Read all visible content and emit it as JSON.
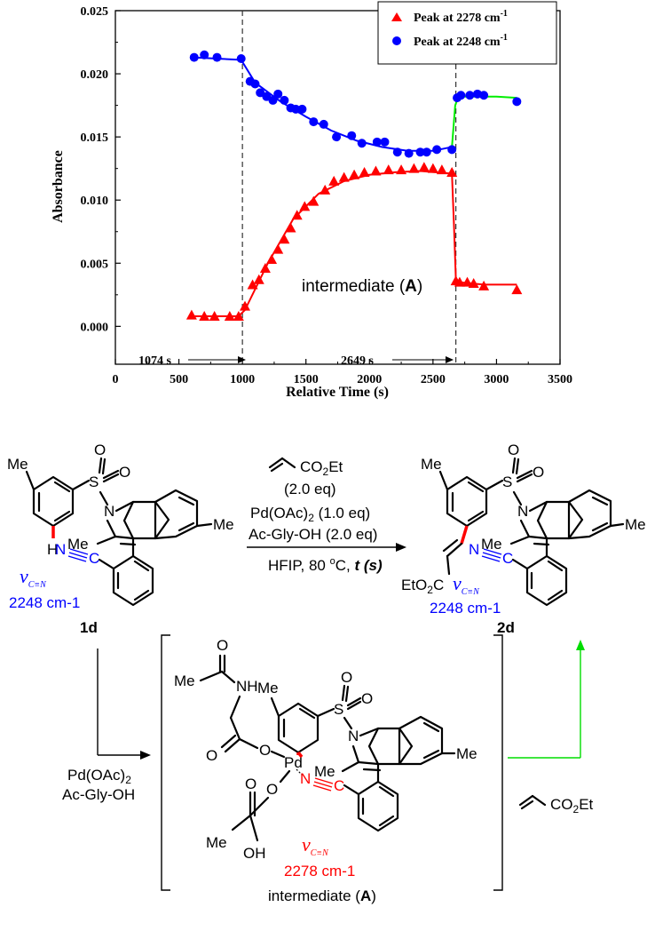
{
  "chart_data": {
    "type": "scatter",
    "title": "",
    "xlabel": "Relative Time (s)",
    "ylabel": "Absorbance",
    "xlim": [
      0,
      3500
    ],
    "ylim": [
      -0.003,
      0.025
    ],
    "x_ticks": [
      0,
      500,
      1000,
      1500,
      2000,
      2500,
      3000,
      3500
    ],
    "y_ticks": [
      0.0,
      0.005,
      0.01,
      0.015,
      0.02,
      0.025
    ],
    "y_tick_labels": [
      "0.000",
      "0.005",
      "0.010",
      "0.015",
      "0.020",
      "0.025"
    ],
    "legend_position": "top-right",
    "series": [
      {
        "name": "Peak at 2278 cm-1",
        "name_main": "Peak at 2278 cm",
        "name_sup": "-1",
        "marker": "triangle",
        "color": "#ff0000",
        "x": [
          600,
          700,
          780,
          900,
          970,
          1020,
          1080,
          1130,
          1180,
          1230,
          1280,
          1330,
          1380,
          1430,
          1490,
          1560,
          1650,
          1720,
          1800,
          1880,
          1960,
          2050,
          2150,
          2250,
          2350,
          2430,
          2500,
          2570,
          2649,
          2680,
          2710,
          2770,
          2820,
          2900,
          3160
        ],
        "y": [
          0.0009,
          0.0008,
          0.0008,
          0.0008,
          0.0008,
          0.0016,
          0.0033,
          0.0037,
          0.0046,
          0.0053,
          0.0061,
          0.0069,
          0.0078,
          0.0088,
          0.0095,
          0.0099,
          0.0108,
          0.0115,
          0.0118,
          0.012,
          0.0122,
          0.0123,
          0.0124,
          0.0124,
          0.0125,
          0.0126,
          0.0125,
          0.0124,
          0.0122,
          0.0036,
          0.0035,
          0.0035,
          0.0034,
          0.0032,
          0.0029
        ]
      },
      {
        "name": "Peak at 2248 cm-1",
        "name_main": "Peak at 2248 cm",
        "name_sup": "-1",
        "marker": "circle",
        "color": "#0000ff",
        "x": [
          620,
          700,
          800,
          990,
          1060,
          1100,
          1140,
          1190,
          1240,
          1280,
          1330,
          1380,
          1420,
          1470,
          1560,
          1640,
          1740,
          1860,
          1940,
          2060,
          2120,
          2220,
          2310,
          2400,
          2450,
          2530,
          2649,
          2690,
          2720,
          2790,
          2850,
          2900,
          3160
        ],
        "y": [
          0.0213,
          0.0215,
          0.0213,
          0.0212,
          0.0194,
          0.0192,
          0.0185,
          0.0182,
          0.0179,
          0.0184,
          0.0179,
          0.0173,
          0.0172,
          0.0172,
          0.0162,
          0.016,
          0.015,
          0.0151,
          0.0145,
          0.0146,
          0.0146,
          0.0138,
          0.0137,
          0.0138,
          0.0138,
          0.014,
          0.014,
          0.0181,
          0.0183,
          0.0183,
          0.0184,
          0.0183,
          0.0178
        ]
      }
    ],
    "fit_lines": [
      {
        "color": "#ff0000",
        "x": [
          600,
          970,
          1020,
          1200,
          1400,
          1600,
          1800,
          2000,
          2200,
          2400,
          2649
        ],
        "y": [
          0.0008,
          0.0008,
          0.0013,
          0.005,
          0.0085,
          0.0105,
          0.0115,
          0.012,
          0.0122,
          0.0123,
          0.0121
        ]
      },
      {
        "color": "#ff0000",
        "x": [
          2649,
          2665,
          2680,
          2700,
          2800,
          2900,
          3160
        ],
        "y": [
          0.0121,
          0.008,
          0.0038,
          0.0035,
          0.0034,
          0.0033,
          0.0033
        ]
      },
      {
        "color": "#0000ff",
        "x": [
          620,
          800,
          990,
          1100,
          1300,
          1500,
          1700,
          1900,
          2100,
          2300,
          2500,
          2649
        ],
        "y": [
          0.0213,
          0.0212,
          0.0211,
          0.0193,
          0.0178,
          0.0166,
          0.0155,
          0.0147,
          0.0142,
          0.0139,
          0.0139,
          0.0142
        ]
      },
      {
        "color": "#00ee00",
        "x": [
          2649,
          2675,
          2700,
          2800,
          2900,
          3000,
          3160
        ],
        "y": [
          0.0142,
          0.0175,
          0.0182,
          0.0182,
          0.0182,
          0.0182,
          0.0181
        ]
      }
    ],
    "vlines": [
      1000,
      2680
    ],
    "annotations": {
      "t1": "1074 s",
      "t2": "2649 s",
      "intermediate_main": "intermediate (",
      "intermediate_bold": "A",
      "intermediate_end": ")"
    }
  },
  "scheme": {
    "reagents": {
      "acrylate": "CO2Et",
      "acrylate_eq": "(2.0 eq)",
      "pd": "Pd(OAc)2 (1.0 eq)",
      "ligand": "Ac-Gly-OH (2.0 eq)",
      "conditions": "HFIP, 80 oC, t (s)"
    },
    "start": {
      "label": "1d",
      "nu": "ν",
      "nu_sub": "C≡N",
      "wavenumber": "2248 cm-1"
    },
    "product": {
      "label": "2d",
      "nu": "ν",
      "nu_sub": "C≡N",
      "wavenumber": "2248 cm-1",
      "ester": "EtO2C"
    },
    "side_reagents": {
      "line1": "Pd(OAc)2",
      "line2": "Ac-Gly-OH"
    },
    "intermediate": {
      "label": "intermediate (A)",
      "nu": "ν",
      "nu_sub": "C≡N",
      "wavenumber": "2278 cm-1",
      "side_acrylate": "CO2Et"
    },
    "atoms": {
      "me": "Me",
      "s": "S",
      "o": "O",
      "n": "N",
      "h": "H",
      "c": "C",
      "nh": "NH",
      "pd": "Pd",
      "oh": "OH",
      "methyl_acyl": "Me"
    }
  }
}
